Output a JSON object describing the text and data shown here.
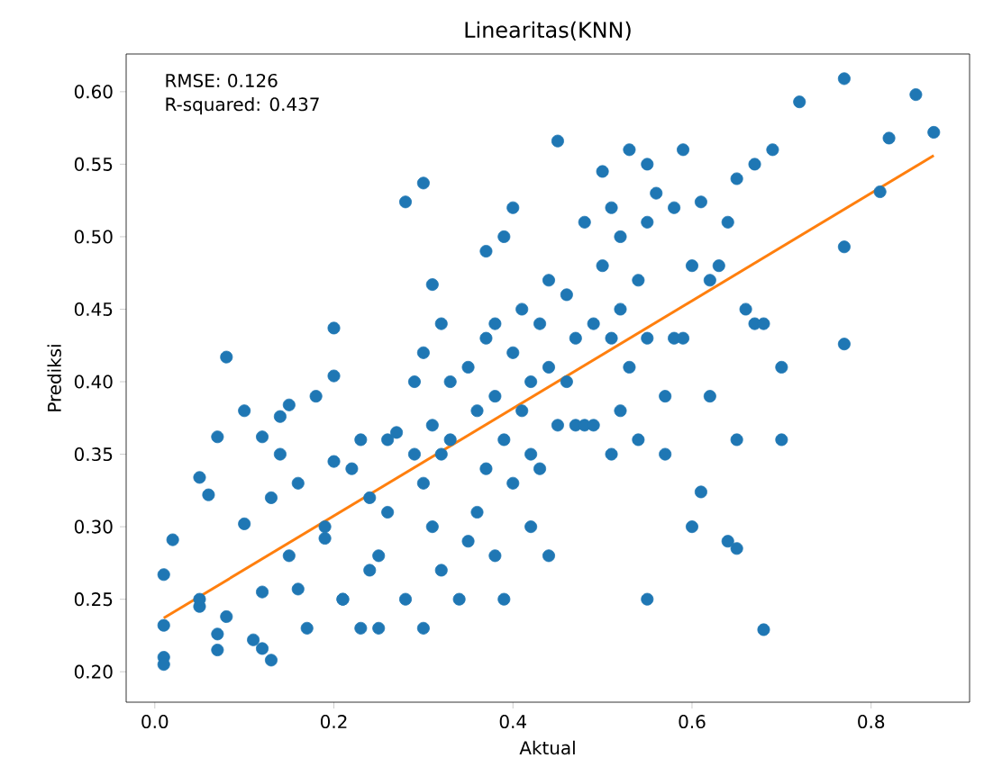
{
  "chart_data": {
    "type": "scatter",
    "title": "Linearitas(KNN)",
    "xlabel": "Aktual",
    "ylabel": "Prediksi",
    "annotations": [
      "RMSE: 0.126",
      "R-squared: 0.437"
    ],
    "marker": "circle",
    "xlim": [
      -0.032,
      0.91
    ],
    "ylim": [
      0.179,
      0.626
    ],
    "xticks": [
      {
        "value": 0,
        "label": "0.0"
      },
      {
        "value": 0.2,
        "label": "0.2"
      },
      {
        "value": 0.4,
        "label": "0.4"
      },
      {
        "value": 0.6,
        "label": "0.6"
      },
      {
        "value": 0.8,
        "label": "0.8"
      }
    ],
    "yticks": [
      {
        "value": 0.2,
        "label": "0.20"
      },
      {
        "value": 0.25,
        "label": "0.25"
      },
      {
        "value": 0.3,
        "label": "0.30"
      },
      {
        "value": 0.35,
        "label": "0.35"
      },
      {
        "value": 0.4,
        "label": "0.40"
      },
      {
        "value": 0.45,
        "label": "0.45"
      },
      {
        "value": 0.5,
        "label": "0.50"
      },
      {
        "value": 0.55,
        "label": "0.55"
      },
      {
        "value": 0.6,
        "label": "0.60"
      }
    ],
    "series": [
      {
        "color": "#1f77b4",
        "x": [
          0.01,
          0.01,
          0.01,
          0.01,
          0.02,
          0.05,
          0.06,
          0.05,
          0.05,
          0.07,
          0.08,
          0.07,
          0.07,
          0.08,
          0.1,
          0.1,
          0.11,
          0.12,
          0.12,
          0.12,
          0.13,
          0.13,
          0.14,
          0.14,
          0.15,
          0.15,
          0.16,
          0.16,
          0.17,
          0.18,
          0.19,
          0.19,
          0.2,
          0.2,
          0.2,
          0.21,
          0.21,
          0.22,
          0.23,
          0.23,
          0.24,
          0.24,
          0.25,
          0.25,
          0.26,
          0.26,
          0.27,
          0.28,
          0.28,
          0.29,
          0.29,
          0.3,
          0.3,
          0.3,
          0.3,
          0.31,
          0.31,
          0.31,
          0.32,
          0.32,
          0.32,
          0.33,
          0.33,
          0.34,
          0.35,
          0.35,
          0.36,
          0.36,
          0.37,
          0.37,
          0.37,
          0.38,
          0.38,
          0.38,
          0.39,
          0.39,
          0.39,
          0.4,
          0.4,
          0.4,
          0.41,
          0.41,
          0.42,
          0.42,
          0.42,
          0.43,
          0.43,
          0.44,
          0.44,
          0.44,
          0.45,
          0.45,
          0.46,
          0.46,
          0.47,
          0.47,
          0.48,
          0.48,
          0.49,
          0.49,
          0.5,
          0.5,
          0.51,
          0.51,
          0.51,
          0.52,
          0.52,
          0.52,
          0.53,
          0.53,
          0.54,
          0.54,
          0.55,
          0.55,
          0.55,
          0.55,
          0.56,
          0.57,
          0.57,
          0.58,
          0.58,
          0.59,
          0.59,
          0.6,
          0.6,
          0.61,
          0.61,
          0.62,
          0.62,
          0.63,
          0.64,
          0.64,
          0.65,
          0.65,
          0.65,
          0.66,
          0.67,
          0.67,
          0.68,
          0.68,
          0.69,
          0.7,
          0.7,
          0.72,
          0.77,
          0.77,
          0.77,
          0.81,
          0.82,
          0.85,
          0.87
        ],
        "values": [
          0.267,
          0.232,
          0.21,
          0.205,
          0.291,
          0.334,
          0.322,
          0.245,
          0.25,
          0.362,
          0.417,
          0.226,
          0.215,
          0.238,
          0.302,
          0.38,
          0.222,
          0.255,
          0.216,
          0.362,
          0.32,
          0.208,
          0.35,
          0.376,
          0.384,
          0.28,
          0.33,
          0.257,
          0.23,
          0.39,
          0.3,
          0.292,
          0.437,
          0.404,
          0.345,
          0.25,
          0.25,
          0.34,
          0.36,
          0.23,
          0.32,
          0.27,
          0.28,
          0.23,
          0.36,
          0.31,
          0.365,
          0.524,
          0.25,
          0.4,
          0.35,
          0.537,
          0.42,
          0.33,
          0.23,
          0.467,
          0.37,
          0.3,
          0.44,
          0.35,
          0.27,
          0.4,
          0.36,
          0.25,
          0.41,
          0.29,
          0.38,
          0.31,
          0.49,
          0.43,
          0.34,
          0.44,
          0.39,
          0.28,
          0.5,
          0.36,
          0.25,
          0.52,
          0.42,
          0.33,
          0.45,
          0.38,
          0.4,
          0.3,
          0.35,
          0.44,
          0.34,
          0.47,
          0.41,
          0.28,
          0.566,
          0.37,
          0.46,
          0.4,
          0.43,
          0.37,
          0.51,
          0.37,
          0.44,
          0.37,
          0.545,
          0.48,
          0.43,
          0.35,
          0.52,
          0.5,
          0.45,
          0.38,
          0.56,
          0.41,
          0.47,
          0.36,
          0.55,
          0.51,
          0.43,
          0.25,
          0.53,
          0.39,
          0.35,
          0.52,
          0.43,
          0.43,
          0.56,
          0.3,
          0.48,
          0.524,
          0.324,
          0.39,
          0.47,
          0.48,
          0.51,
          0.29,
          0.36,
          0.54,
          0.285,
          0.45,
          0.55,
          0.44,
          0.229,
          0.44,
          0.56,
          0.41,
          0.36,
          0.593,
          0.609,
          0.493,
          0.426,
          0.531,
          0.568,
          0.598,
          0.572
        ]
      },
      {
        "type": "line",
        "marker": "none",
        "color": "#ff7f0e",
        "x": [
          0.01,
          0.87
        ],
        "values": [
          0.237,
          0.556
        ]
      }
    ]
  }
}
